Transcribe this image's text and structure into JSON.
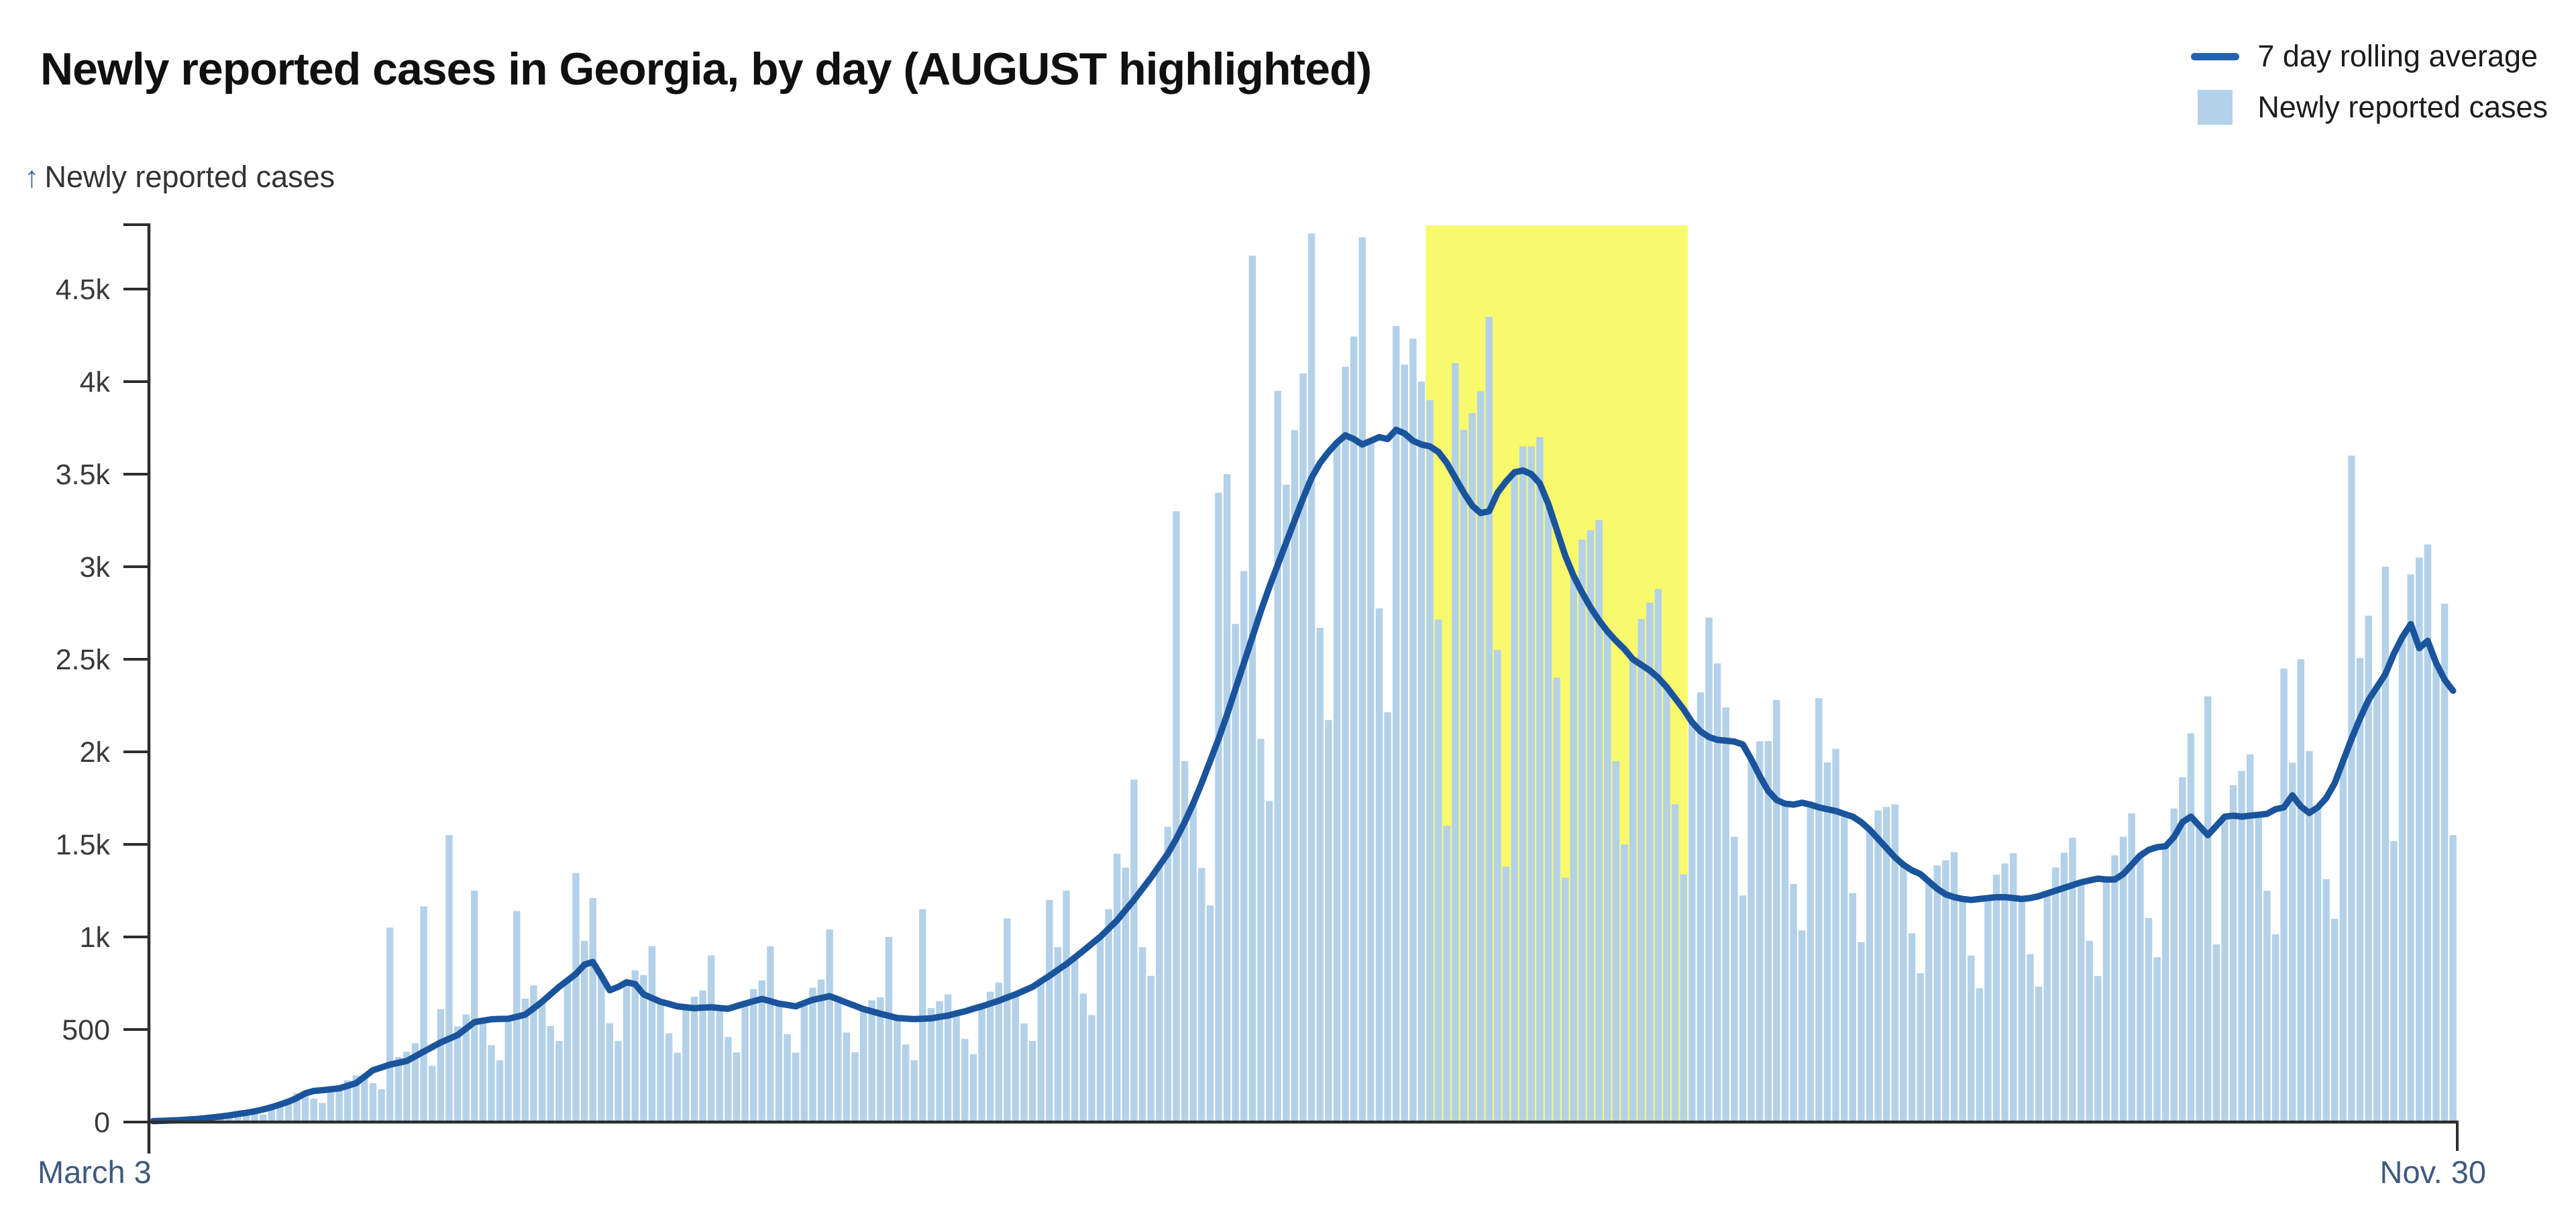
{
  "title": "Newly reported cases in Georgia, by day (AUGUST highlighted)",
  "y_axis": {
    "arrow": "↑",
    "label": "Newly reported cases"
  },
  "legend": {
    "line_label": "7 day rolling average",
    "bar_label": "Newly reported cases"
  },
  "colors": {
    "bar": "#b3d1e8",
    "line": "#1a549c",
    "legend_line": "#2363ae",
    "highlight": "#f9f96e",
    "axis": "#2d2d2d",
    "y_tick_text": "#3a3a3a",
    "date_text": "#3e5a7e"
  },
  "chart_data": {
    "type": "bar",
    "title": "Newly reported cases in Georgia, by day (AUGUST highlighted)",
    "xlabel": "",
    "ylabel": "Newly reported cases",
    "x_start_label": "March 3",
    "x_end_label": "Nov. 30",
    "num_days": 273,
    "ylim": [
      0,
      4880
    ],
    "grid": false,
    "legend_position": "top-right",
    "y_ticks": [
      {
        "value": 0,
        "label": "0"
      },
      {
        "value": 500,
        "label": "500"
      },
      {
        "value": 1000,
        "label": "1k"
      },
      {
        "value": 1500,
        "label": "1.5k"
      },
      {
        "value": 2000,
        "label": "2k"
      },
      {
        "value": 2500,
        "label": "2.5k"
      },
      {
        "value": 3000,
        "label": "3k"
      },
      {
        "value": 3500,
        "label": "3.5k"
      },
      {
        "value": 4000,
        "label": "4k"
      },
      {
        "value": 4500,
        "label": "4.5k"
      }
    ],
    "highlight": {
      "label": "August",
      "start_day": 151,
      "end_day": 182,
      "color": "#f9f96e"
    },
    "series": [
      {
        "name": "Newly reported cases",
        "type": "bar",
        "color": "#b3d1e8",
        "values": [
          5,
          7,
          9,
          12,
          13,
          12,
          12,
          25,
          33,
          41,
          52,
          50,
          44,
          41,
          80,
          105,
          127,
          156,
          155,
          126,
          103,
          177,
          200,
          225,
          252,
          245,
          210,
          177,
          1050,
          352,
          380,
          426,
          1165,
          304,
          610,
          1550,
          517,
          581,
          1250,
          548,
          416,
          334,
          558,
          1140,
          667,
          738,
          650,
          518,
          438,
          765,
          1345,
          978,
          1210,
          790,
          534,
          438,
          755,
          820,
          794,
          950,
          650,
          479,
          375,
          620,
          677,
          711,
          900,
          616,
          459,
          376,
          640,
          718,
          765,
          950,
          640,
          475,
          375,
          643,
          726,
          770,
          1040,
          663,
          484,
          377,
          610,
          658,
          673,
          1000,
          562,
          419,
          334,
          1150,
          616,
          653,
          690,
          587,
          449,
          367,
          625,
          704,
          753,
          1100,
          690,
          533,
          438,
          760,
          1200,
          945,
          1250,
          889,
          694,
          578,
          1000,
          1150,
          1450,
          1374,
          1850,
          945,
          790,
          1385,
          1595,
          3300,
          1950,
          1720,
          1372,
          1170,
          3400,
          3500,
          2691,
          2976,
          4680,
          2070,
          1734,
          3950,
          3443,
          3738,
          4044,
          4800,
          2670,
          2172,
          3670,
          4081,
          4244,
          4780,
          3680,
          2775,
          2214,
          4300,
          4092,
          4232,
          4000,
          3900,
          2715,
          1600,
          4100,
          3740,
          3830,
          3948,
          4350,
          2550,
          1380,
          3510,
          3650,
          3650,
          3700,
          3340,
          2400,
          1320,
          2950,
          3146,
          3197,
          3252,
          2650,
          1950,
          1500,
          2500,
          2717,
          2806,
          2880,
          2350,
          1717,
          1338,
          2160,
          2321,
          2725,
          2478,
          2240,
          1541,
          1224,
          1960,
          2057,
          2058,
          2280,
          1720,
          1286,
          1035,
          1715,
          2290,
          1943,
          2016,
          1665,
          1237,
          972,
          1580,
          1683,
          1702,
          1716,
          1390,
          1020,
          804,
          1300,
          1386,
          1414,
          1458,
          1205,
          900,
          723,
          1210,
          1336,
          1397,
          1452,
          1205,
          907,
          732,
          1235,
          1375,
          1455,
          1536,
          1295,
          979,
          789,
          1310,
          1441,
          1541,
          1668,
          1440,
          1102,
          891,
          1490,
          1694,
          1863,
          2100,
          1600,
          2300,
          960,
          1650,
          1820,
          1897,
          1986,
          1660,
          1249,
          1014,
          2450,
          1941,
          2500,
          2004,
          1700,
          1312,
          1098,
          1950,
          3600,
          2507,
          2736,
          2350,
          3000,
          1518,
          2620,
          2959,
          3050,
          3120,
          2480,
          2800,
          1550
        ]
      },
      {
        "name": "7 day rolling average",
        "type": "line",
        "color": "#1a549c",
        "values": [
          5,
          6,
          8,
          10,
          13,
          16,
          20,
          25,
          30,
          36,
          43,
          50,
          58,
          68,
          80,
          95,
          110,
          130,
          155,
          168,
          172,
          177,
          182,
          196,
          210,
          245,
          280,
          295,
          310,
          320,
          330,
          355,
          380,
          405,
          430,
          450,
          470,
          505,
          540,
          548,
          555,
          557,
          558,
          569,
          580,
          615,
          650,
          690,
          730,
          765,
          800,
          850,
          865,
          790,
          712,
          730,
          755,
          745,
          690,
          670,
          650,
          638,
          625,
          620,
          615,
          618,
          620,
          616,
          612,
          626,
          640,
          653,
          665,
          653,
          640,
          633,
          625,
          643,
          660,
          670,
          680,
          663,
          645,
          628,
          610,
          598,
          585,
          574,
          562,
          559,
          556,
          558,
          560,
          568,
          575,
          587,
          598,
          612,
          625,
          640,
          655,
          673,
          690,
          710,
          730,
          760,
          790,
          822,
          853,
          889,
          925,
          963,
          1000,
          1045,
          1090,
          1145,
          1200,
          1260,
          1320,
          1385,
          1450,
          1530,
          1620,
          1720,
          1830,
          1950,
          2070,
          2200,
          2340,
          2480,
          2620,
          2760,
          2890,
          3010,
          3130,
          3250,
          3370,
          3480,
          3560,
          3620,
          3670,
          3710,
          3690,
          3660,
          3680,
          3700,
          3690,
          3740,
          3720,
          3680,
          3660,
          3650,
          3620,
          3560,
          3480,
          3400,
          3330,
          3290,
          3300,
          3400,
          3460,
          3510,
          3520,
          3500,
          3450,
          3340,
          3200,
          3060,
          2950,
          2860,
          2780,
          2710,
          2650,
          2600,
          2555,
          2500,
          2470,
          2440,
          2400,
          2350,
          2290,
          2230,
          2160,
          2110,
          2080,
          2065,
          2060,
          2055,
          2040,
          1960,
          1870,
          1790,
          1740,
          1720,
          1715,
          1725,
          1715,
          1700,
          1690,
          1680,
          1665,
          1650,
          1620,
          1580,
          1530,
          1480,
          1430,
          1390,
          1360,
          1340,
          1300,
          1260,
          1230,
          1215,
          1205,
          1200,
          1205,
          1210,
          1215,
          1215,
          1210,
          1205,
          1210,
          1220,
          1235,
          1250,
          1265,
          1280,
          1295,
          1305,
          1315,
          1310,
          1310,
          1340,
          1390,
          1440,
          1470,
          1485,
          1490,
          1540,
          1620,
          1650,
          1600,
          1550,
          1600,
          1650,
          1655,
          1650,
          1655,
          1660,
          1665,
          1690,
          1700,
          1765,
          1705,
          1670,
          1700,
          1750,
          1830,
          1950,
          2070,
          2180,
          2280,
          2350,
          2420,
          2530,
          2620,
          2690,
          2560,
          2600,
          2480,
          2390,
          2330
        ]
      }
    ]
  }
}
